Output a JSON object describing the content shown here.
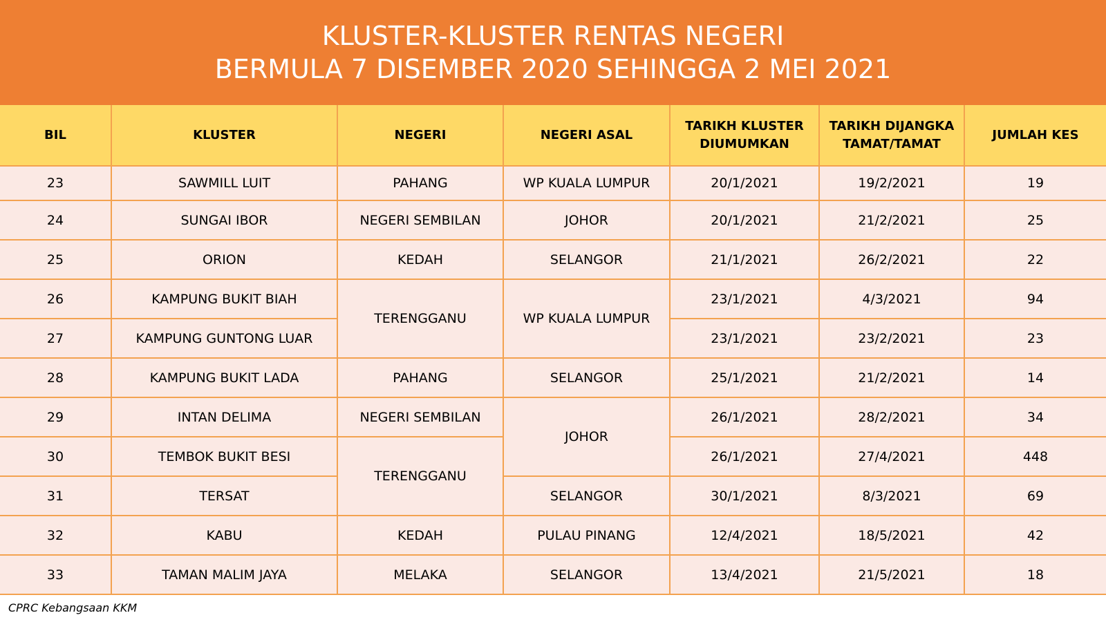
{
  "header": {
    "title_line1": "KLUSTER-KLUSTER RENTAS NEGERI",
    "title_line2": "BERMULA 7 DISEMBER 2020 SEHINGGA 2 MEI 2021"
  },
  "table": {
    "columns": [
      {
        "line1": "BIL",
        "line2": ""
      },
      {
        "line1": "KLUSTER",
        "line2": ""
      },
      {
        "line1": "NEGERI",
        "line2": ""
      },
      {
        "line1": "NEGERI ASAL",
        "line2": ""
      },
      {
        "line1": "TARIKH KLUSTER",
        "line2": "DIUMUMKAN"
      },
      {
        "line1": "TARIKH DIJANGKA",
        "line2": "TAMAT/TAMAT"
      },
      {
        "line1": "JUMLAH KES",
        "line2": ""
      }
    ],
    "rows": [
      {
        "bil": "23",
        "kluster": "SAWMILL LUIT",
        "negeri": "PAHANG",
        "negeri_asal": "WP KUALA LUMPUR",
        "diumumkan": "20/1/2021",
        "tamat": "19/2/2021",
        "kes": "19"
      },
      {
        "bil": "24",
        "kluster": "SUNGAI IBOR",
        "negeri": "NEGERI SEMBILAN",
        "negeri_asal": "JOHOR",
        "diumumkan": "20/1/2021",
        "tamat": "21/2/2021",
        "kes": "25"
      },
      {
        "bil": "25",
        "kluster": "ORION",
        "negeri": "KEDAH",
        "negeri_asal": "SELANGOR",
        "diumumkan": "21/1/2021",
        "tamat": "26/2/2021",
        "kes": "22"
      },
      {
        "bil": "26",
        "kluster": "KAMPUNG BUKIT BIAH",
        "negeri": "TERENGGANU",
        "negeri_asal": "WP KUALA LUMPUR",
        "diumumkan": "23/1/2021",
        "tamat": "4/3/2021",
        "kes": "94"
      },
      {
        "bil": "27",
        "kluster": "KAMPUNG GUNTONG LUAR",
        "negeri": "",
        "negeri_asal": "",
        "diumumkan": "23/1/2021",
        "tamat": "23/2/2021",
        "kes": "23"
      },
      {
        "bil": "28",
        "kluster": "KAMPUNG BUKIT LADA",
        "negeri": "PAHANG",
        "negeri_asal": "SELANGOR",
        "diumumkan": "25/1/2021",
        "tamat": "21/2/2021",
        "kes": "14"
      },
      {
        "bil": "29",
        "kluster": "INTAN DELIMA",
        "negeri": "NEGERI SEMBILAN",
        "negeri_asal": "JOHOR",
        "diumumkan": "26/1/2021",
        "tamat": "28/2/2021",
        "kes": "34"
      },
      {
        "bil": "30",
        "kluster": "TEMBOK BUKIT BESI",
        "negeri": "TERENGGANU",
        "negeri_asal": "",
        "diumumkan": "26/1/2021",
        "tamat": "27/4/2021",
        "kes": "448"
      },
      {
        "bil": "31",
        "kluster": "TERSAT",
        "negeri": "",
        "negeri_asal": "SELANGOR",
        "diumumkan": "30/1/2021",
        "tamat": "8/3/2021",
        "kes": "69"
      },
      {
        "bil": "32",
        "kluster": "KABU",
        "negeri": "KEDAH",
        "negeri_asal": "PULAU PINANG",
        "diumumkan": "12/4/2021",
        "tamat": "18/5/2021",
        "kes": "42"
      },
      {
        "bil": "33",
        "kluster": "TAMAN MALIM JAYA",
        "negeri": "MELAKA",
        "negeri_asal": "SELANGOR",
        "diumumkan": "13/4/2021",
        "tamat": "21/5/2021",
        "kes": "18"
      }
    ]
  },
  "footer": {
    "source": "CPRC Kebangsaan KKM"
  }
}
